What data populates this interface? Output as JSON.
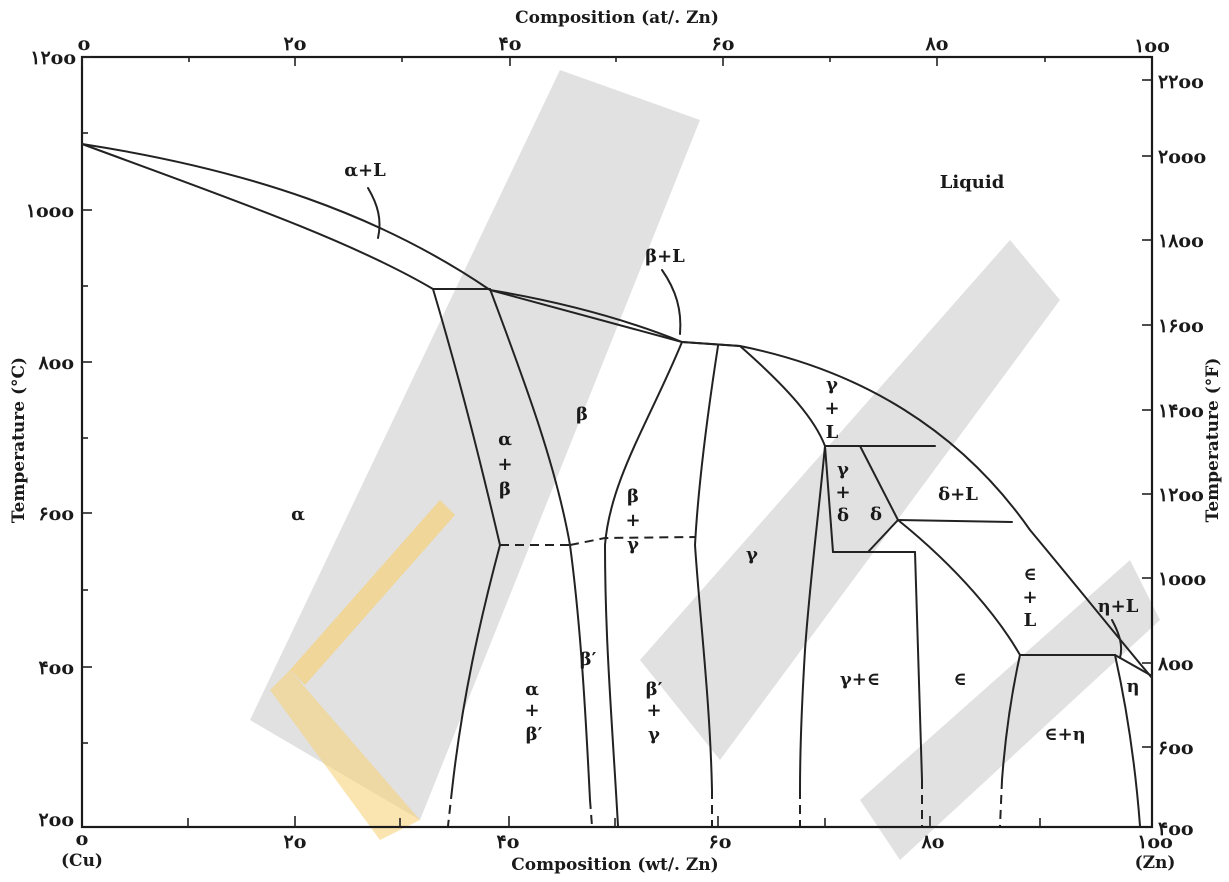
{
  "title_top": "Composition (at/. Zn)",
  "title_bottom": "Composition (wt/. Zn)",
  "ylabel_left": "Temperature (°C)",
  "ylabel_right": "Temperature (°F)",
  "top_ticks": [
    "o",
    "۲o",
    "۴o",
    "۶o",
    "۸o",
    "۱oo"
  ],
  "bottom_ticks": [
    "o",
    "۲o",
    "۴o",
    "۶o",
    "۸o",
    "۱oo"
  ],
  "bottom_end_labels": {
    "left": "(Cu)",
    "right": "(Zn)"
  },
  "left_ticks": [
    "۱۲oo",
    "۱ooo",
    "۸oo",
    "۶oo",
    "۴oo",
    "۲oo"
  ],
  "right_ticks": [
    "۲۲oo",
    "۲ooo",
    "۱۸oo",
    "۱۶oo",
    "۱۴oo",
    "۱۲oo",
    "۱ooo",
    "۸oo",
    "۶oo",
    "۴oo"
  ],
  "regions": {
    "alpha_L": "α+L",
    "liquid": "Liquid",
    "beta_L": "β+L",
    "beta": "β",
    "alpha": "α",
    "alpha_beta": [
      "α",
      "+",
      "β"
    ],
    "beta_gamma": [
      "β",
      "+",
      "γ"
    ],
    "gamma": "γ",
    "gamma_L": [
      "γ",
      "+",
      "L"
    ],
    "gamma_delta": [
      "γ",
      "+",
      "δ"
    ],
    "delta": "δ",
    "delta_L": "δ+L",
    "eps_L": [
      "∈",
      "+",
      "L"
    ],
    "eta_L": "η+L",
    "beta_prime": "β′",
    "alpha_betap": [
      "α",
      "+",
      "β′"
    ],
    "betap_gamma": [
      "β′",
      "+",
      "γ"
    ],
    "gamma_eps": "γ+∈",
    "eps": "∈",
    "eps_eta": "∈+η",
    "eta": "η"
  }
}
